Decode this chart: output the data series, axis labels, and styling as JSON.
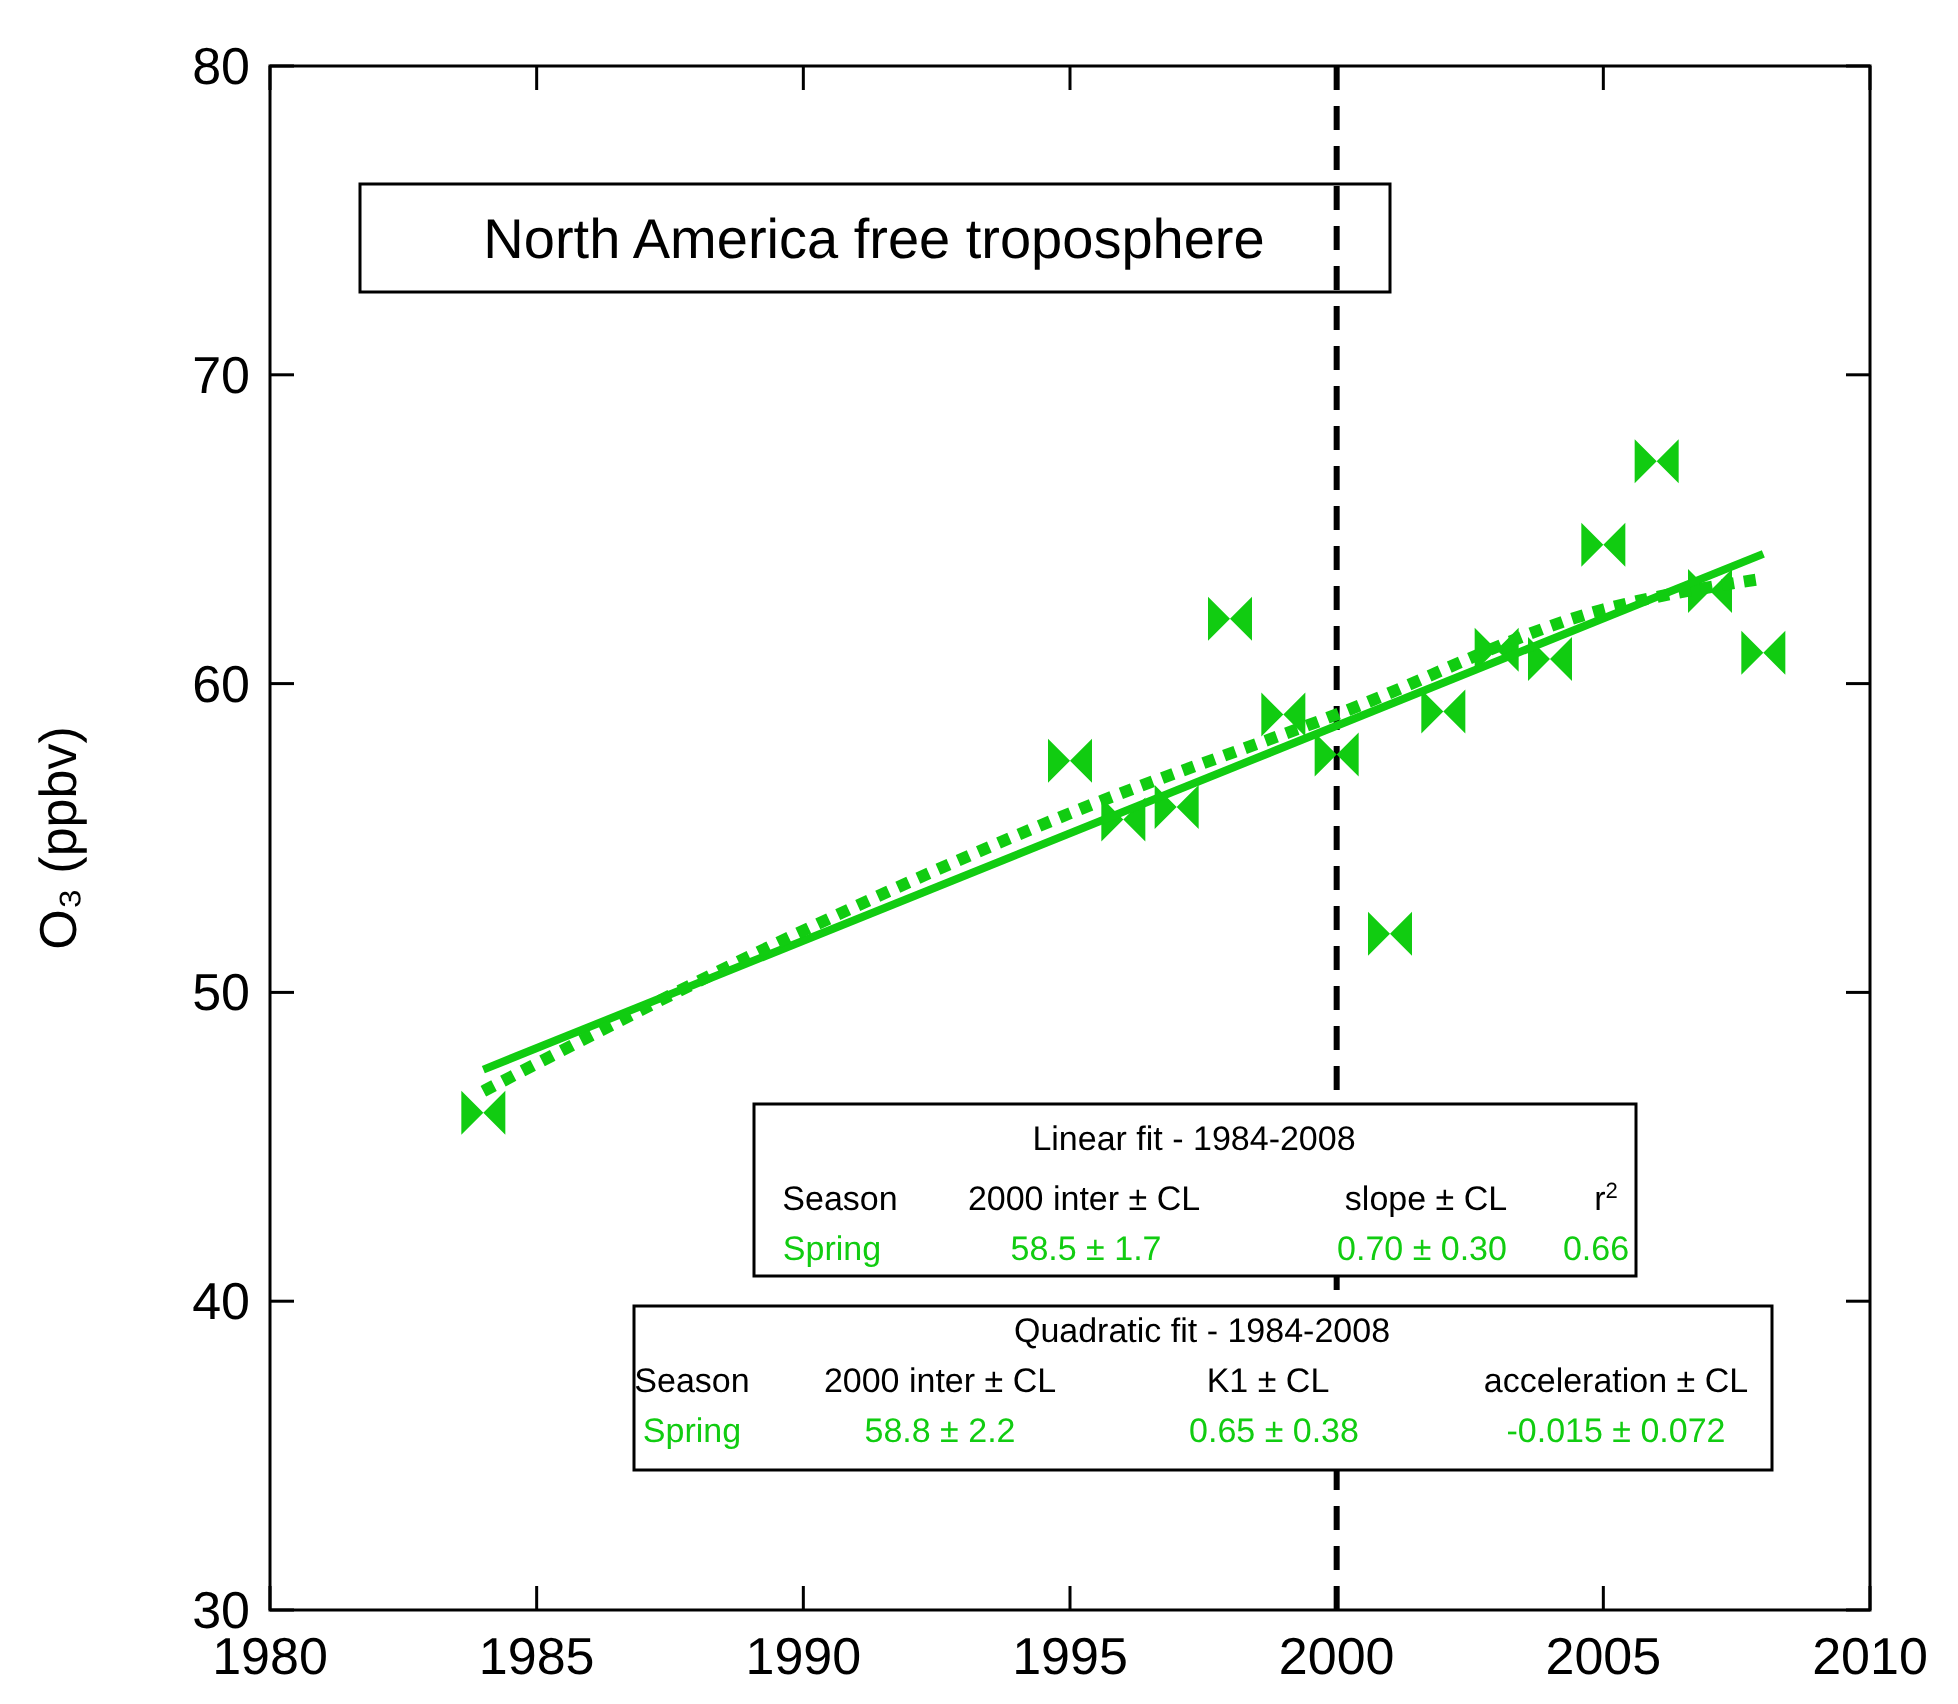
{
  "chart_data": {
    "type": "scatter",
    "title": "North America free troposphere",
    "ylabel": "O₃ (ppbv)",
    "xlim": [
      1980,
      2010
    ],
    "xticks": [
      1980,
      1985,
      1990,
      1995,
      2000,
      2005,
      2010
    ],
    "ylim": [
      30,
      80
    ],
    "yticks": [
      30,
      40,
      50,
      60,
      70,
      80
    ],
    "grid": false,
    "series": [
      {
        "marker": "triangle",
        "color": "#11cc11",
        "x": [
          1984,
          1995,
          1996,
          1997,
          1998,
          1999,
          2000,
          2001,
          2002,
          2003,
          2004,
          2005,
          2006,
          2007,
          2008
        ],
        "values": [
          46.1,
          57.5,
          55.6,
          56.0,
          62.1,
          59.0,
          57.7,
          51.9,
          59.1,
          61.1,
          60.8,
          64.5,
          67.2,
          63.0,
          61.0
        ]
      },
      {
        "type": "line",
        "color": "#11cc11",
        "line_style": "solid",
        "x": [
          1984,
          2008
        ],
        "values": [
          47.5,
          64.2
        ]
      },
      {
        "type": "line",
        "color": "#11cc11",
        "line_style": "dotted",
        "x": [
          1984,
          1990,
          1995,
          2000,
          2005,
          2008
        ],
        "values": [
          46.8,
          52.0,
          55.8,
          59.0,
          62.4,
          63.4
        ]
      }
    ],
    "ref_lines": [
      {
        "axis": "x",
        "value": 2000,
        "color": "#000000",
        "line_style": "dashed"
      }
    ],
    "annotations": [
      "Linear fit - 1984-2008",
      "Season",
      "2000 inter ± CL",
      "slope ± CL",
      "r$^{2}$",
      "Spring",
      "58.5 ± 1.7",
      "0.70 ± 0.30",
      "0.66",
      "Quadratic fit - 1984-2008",
      "Season",
      "2000 inter ± CL",
      "K1 ± CL",
      "acceleration ± CL",
      "Spring",
      "58.8 ± 2.2",
      "0.65 ± 0.38",
      "-0.015 ± 0.072"
    ]
  }
}
